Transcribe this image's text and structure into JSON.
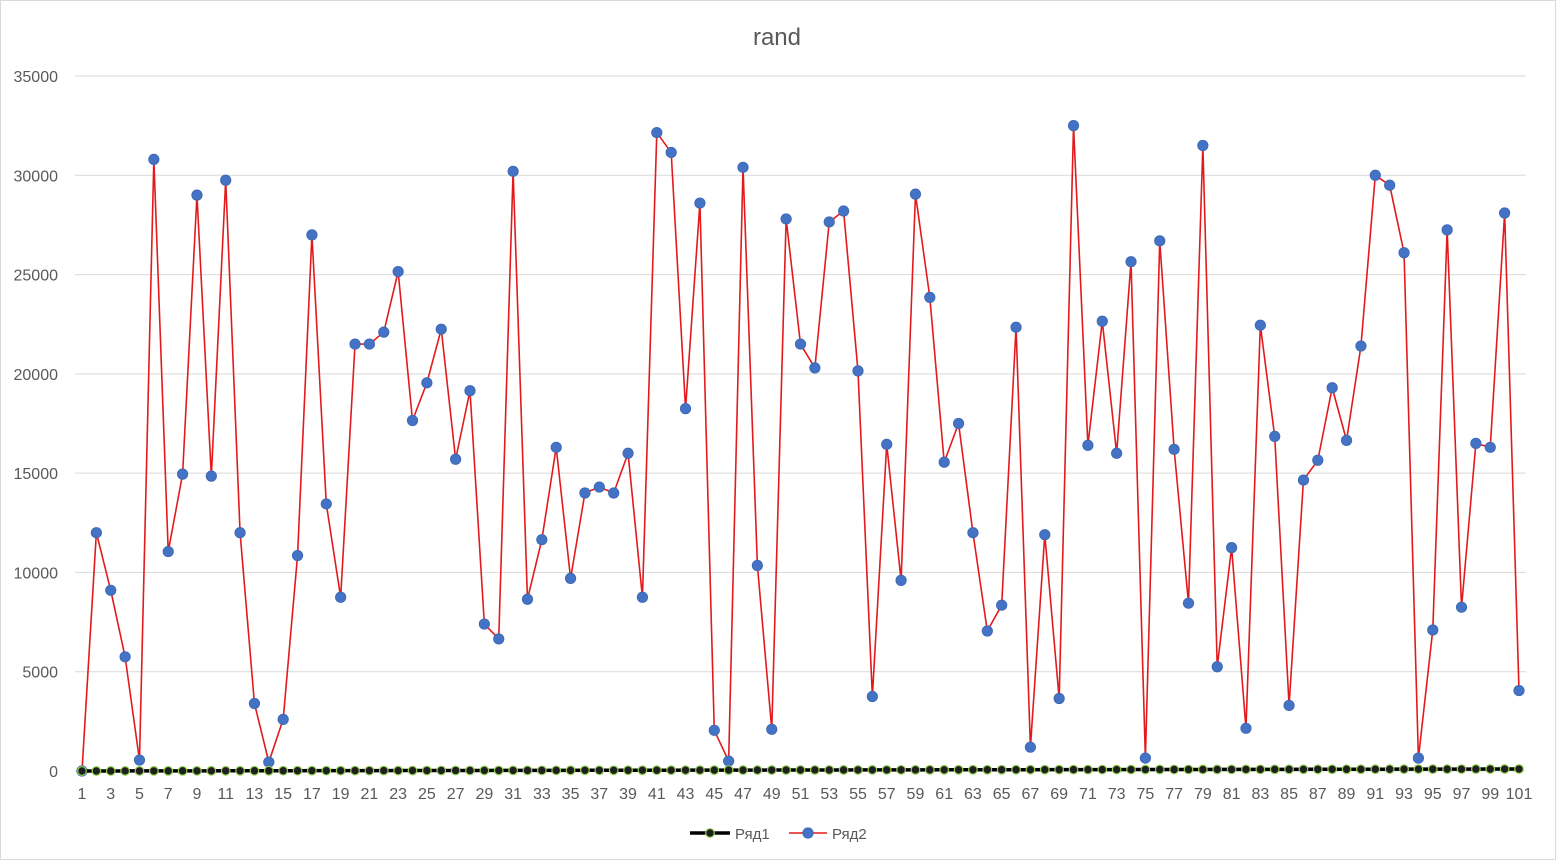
{
  "chart_data": {
    "type": "line",
    "title": "rand",
    "xlabel": "",
    "ylabel": "",
    "ylim": [
      0,
      35000
    ],
    "yticks": [
      0,
      5000,
      10000,
      15000,
      20000,
      25000,
      30000,
      35000
    ],
    "xticks": [
      1,
      3,
      5,
      7,
      9,
      11,
      13,
      15,
      17,
      19,
      21,
      23,
      25,
      27,
      29,
      31,
      33,
      35,
      37,
      39,
      41,
      43,
      45,
      47,
      49,
      51,
      53,
      55,
      57,
      59,
      61,
      63,
      65,
      67,
      69,
      71,
      73,
      75,
      77,
      79,
      81,
      83,
      85,
      87,
      89,
      91,
      93,
      95,
      97,
      99,
      101
    ],
    "grid": true,
    "legend_position": "bottom",
    "series": [
      {
        "name": "Ряд1",
        "line_color": "#000000",
        "marker_color": "#1f1f1f",
        "marker_edge": "#92d050",
        "values": [
          0,
          1,
          2,
          3,
          4,
          5,
          6,
          7,
          8,
          9,
          10,
          11,
          12,
          13,
          14,
          15,
          16,
          17,
          18,
          19,
          20,
          21,
          22,
          23,
          24,
          25,
          26,
          27,
          28,
          29,
          30,
          31,
          32,
          33,
          34,
          35,
          36,
          37,
          38,
          39,
          40,
          41,
          42,
          43,
          44,
          45,
          46,
          47,
          48,
          49,
          50,
          51,
          52,
          53,
          54,
          55,
          56,
          57,
          58,
          59,
          60,
          61,
          62,
          63,
          64,
          65,
          66,
          67,
          68,
          69,
          70,
          71,
          72,
          73,
          74,
          75,
          76,
          77,
          78,
          79,
          80,
          81,
          82,
          83,
          84,
          85,
          86,
          87,
          88,
          89,
          90,
          91,
          92,
          93,
          94,
          95,
          96,
          97,
          98,
          99,
          100
        ]
      },
      {
        "name": "Ряд2",
        "line_color": "#e31a1c",
        "marker_color": "#4472c4",
        "values": [
          0,
          12000,
          9100,
          5750,
          550,
          30800,
          11050,
          14950,
          29000,
          14850,
          29750,
          12000,
          3400,
          450,
          2600,
          10850,
          27000,
          13450,
          8750,
          21500,
          21500,
          22100,
          25150,
          17650,
          19550,
          22250,
          15700,
          19150,
          7400,
          6650,
          30200,
          8650,
          11650,
          16300,
          9700,
          14000,
          14300,
          14000,
          16000,
          8750,
          32150,
          31150,
          18250,
          28600,
          2050,
          500,
          30400,
          10350,
          2100,
          27800,
          21500,
          20300,
          27650,
          28200,
          20150,
          3750,
          16450,
          9600,
          29050,
          23850,
          15550,
          17500,
          12000,
          7050,
          8350,
          22350,
          1200,
          11900,
          3650,
          32500,
          16400,
          22650,
          16000,
          25650,
          650,
          26700,
          16200,
          8450,
          31500,
          5250,
          11250,
          2150,
          22450,
          16850,
          3300,
          14650,
          15650,
          19300,
          16650,
          21400,
          30000,
          29500,
          26100,
          650,
          7100,
          27250,
          8250,
          16500,
          16300,
          28100,
          4050
        ]
      }
    ]
  }
}
